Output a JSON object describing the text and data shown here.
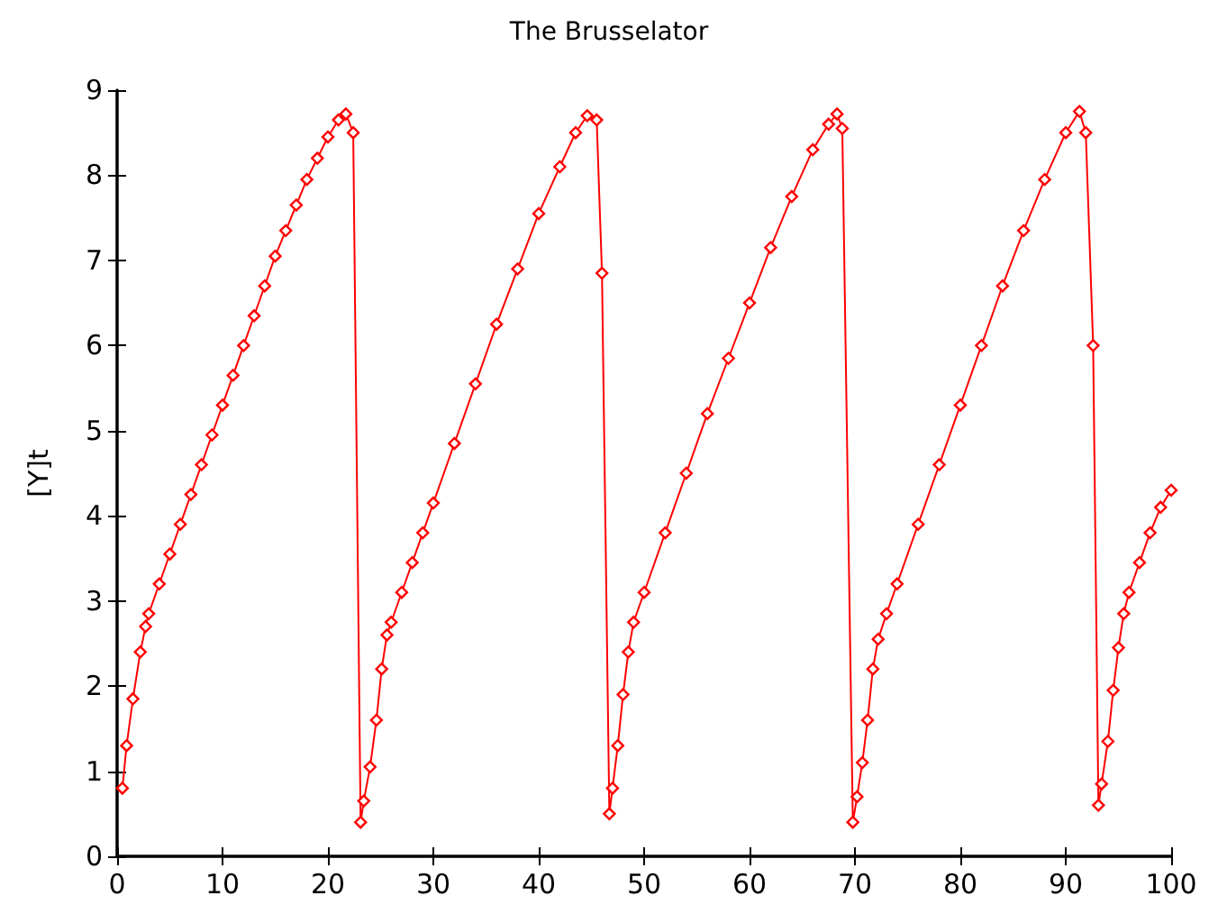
{
  "chart_data": {
    "type": "line",
    "title": "The Brusselator",
    "ylabel": "[Y]t",
    "xlim": [
      0,
      100
    ],
    "xticks": [
      0,
      10,
      20,
      30,
      40,
      50,
      60,
      70,
      80,
      90,
      100
    ],
    "ylim": [
      0,
      9
    ],
    "yticks": [
      0,
      1,
      2,
      3,
      4,
      5,
      6,
      7,
      8,
      9
    ],
    "grid": false,
    "marker": "diamond",
    "line_style": "solid",
    "series": [
      {
        "color": "#ff0000",
        "x": [
          0.5,
          0.9,
          1.5,
          2.2,
          2.7,
          3,
          4,
          5,
          6,
          7,
          8,
          9,
          10,
          11,
          12,
          13,
          14,
          15,
          16,
          17,
          18,
          19,
          20,
          21,
          21.7,
          22.4,
          23.1,
          23.4,
          24,
          24.6,
          25.1,
          25.6,
          26,
          27,
          28,
          29,
          30,
          32,
          34,
          36,
          38,
          40,
          42,
          43.5,
          44.6,
          45.5,
          46,
          46.7,
          47,
          47.5,
          48,
          48.5,
          49,
          50,
          52,
          54,
          56,
          58,
          60,
          62,
          64,
          66,
          67.5,
          68.3,
          68.8,
          69.8,
          70.2,
          70.7,
          71.2,
          71.7,
          72.2,
          73,
          74,
          76,
          78,
          80,
          82,
          84,
          86,
          88,
          90,
          91.3,
          91.9,
          92.6,
          93.1,
          93.4,
          94,
          94.5,
          95,
          95.5,
          96,
          97,
          98,
          99,
          100
        ],
        "values": [
          0.8,
          1.3,
          1.85,
          2.4,
          2.7,
          2.85,
          3.2,
          3.55,
          3.9,
          4.25,
          4.6,
          4.95,
          5.3,
          5.65,
          6.0,
          6.35,
          6.7,
          7.05,
          7.35,
          7.65,
          7.95,
          8.2,
          8.45,
          8.65,
          8.72,
          8.5,
          0.4,
          0.65,
          1.05,
          1.6,
          2.2,
          2.6,
          2.75,
          3.1,
          3.45,
          3.8,
          4.15,
          4.85,
          5.55,
          6.25,
          6.9,
          7.55,
          8.1,
          8.5,
          8.7,
          8.65,
          6.85,
          0.5,
          0.8,
          1.3,
          1.9,
          2.4,
          2.75,
          3.1,
          3.8,
          4.5,
          5.2,
          5.85,
          6.5,
          7.15,
          7.75,
          8.3,
          8.6,
          8.72,
          8.55,
          0.4,
          0.7,
          1.1,
          1.6,
          2.2,
          2.55,
          2.85,
          3.2,
          3.9,
          4.6,
          5.3,
          6.0,
          6.7,
          7.35,
          7.95,
          8.5,
          8.75,
          8.5,
          6.0,
          0.6,
          0.85,
          1.35,
          1.95,
          2.45,
          2.85,
          3.1,
          3.45,
          3.8,
          4.1,
          4.3
        ]
      }
    ]
  }
}
